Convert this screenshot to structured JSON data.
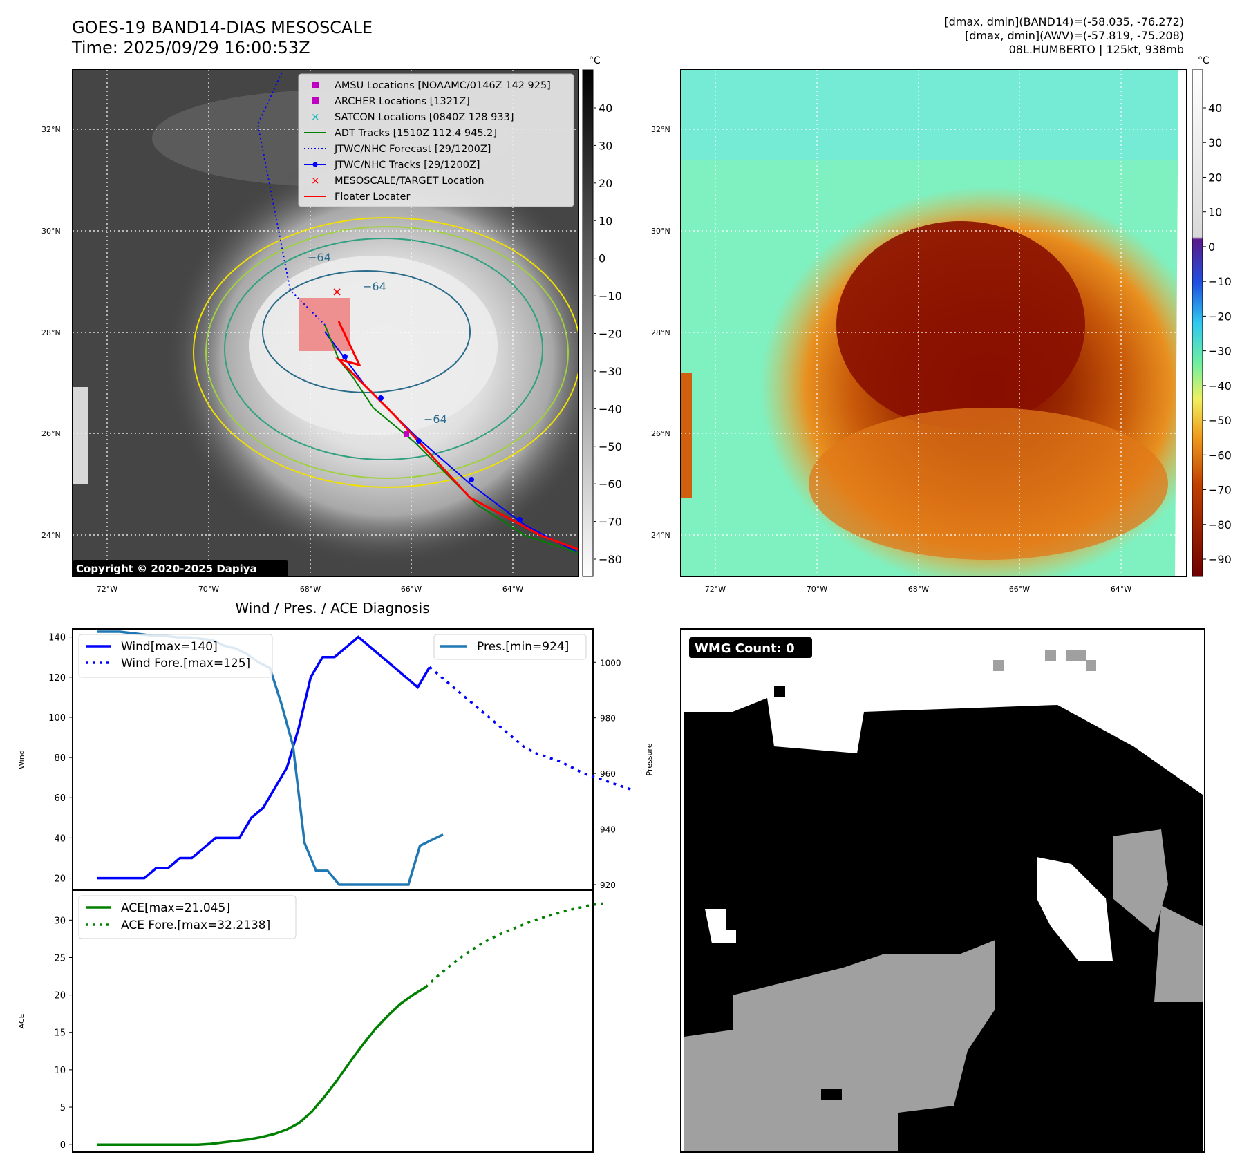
{
  "header": {
    "title": "GOES-19 BAND14-DIAS MESOSCALE",
    "time": "Time: 2025/09/29 16:00:53Z",
    "meta_line1": "[dmax, dmin](BAND14)=(-58.035, -76.272)",
    "meta_line2": "[dmax, dmin](AWV)=(-57.819, -75.208)",
    "meta_line3": "08L.HUMBERTO | 125kt, 938mb"
  },
  "map": {
    "lat_labels": [
      "32°N",
      "30°N",
      "28°N",
      "26°N",
      "24°N"
    ],
    "lon_labels": [
      "72°W",
      "70°W",
      "68°W",
      "66°W",
      "64°W"
    ],
    "contour_label": "−64",
    "copyright": "Copyright © 2020-2025 Dapiya",
    "legend": [
      {
        "label": "AMSU Locations [NOAAMC/0146Z 142 925]",
        "color": "#c000c0",
        "marker": "square"
      },
      {
        "label": "ARCHER Locations [1321Z]",
        "color": "#c000c0",
        "marker": "square"
      },
      {
        "label": "SATCON Locations [0840Z 128 933]",
        "color": "#10b8b8",
        "marker": "x"
      },
      {
        "label": "ADT Tracks [1510Z 112.4 945.2]",
        "color": "#008000",
        "marker": "line"
      },
      {
        "label": "JTWC/NHC Forecast [29/1200Z]",
        "color": "#0000ff",
        "marker": "dotted"
      },
      {
        "label": "JTWC/NHC Tracks [29/1200Z]",
        "color": "#0000ff",
        "marker": "line-dot"
      },
      {
        "label": "MESOSCALE/TARGET Location",
        "color": "#ff0000",
        "marker": "x"
      },
      {
        "label": "Floater Locater",
        "color": "#ff0000",
        "marker": "line"
      }
    ]
  },
  "colorbar_gray": {
    "unit": "°C",
    "ticks": [
      "40",
      "30",
      "20",
      "10",
      "0",
      "−10",
      "−20",
      "−30",
      "−40",
      "−50",
      "−60",
      "−70",
      "−80"
    ]
  },
  "colorbar_color": {
    "unit": "°C",
    "ticks": [
      "40",
      "30",
      "20",
      "10",
      "0",
      "−10",
      "−20",
      "−30",
      "−40",
      "−50",
      "−60",
      "−70",
      "−80",
      "−90"
    ]
  },
  "wmg": {
    "badge": "WMG Count: 0"
  },
  "chart_data": [
    {
      "type": "line",
      "title": "Wind / Pres. / ACE Diagnosis",
      "ylabel": "Wind",
      "ylabel_right": "Pressure",
      "ylim": [
        14,
        144
      ],
      "ylim_right": [
        918,
        1012
      ],
      "yticks": [
        20,
        40,
        60,
        80,
        100,
        120,
        140
      ],
      "yticks_right": [
        920,
        940,
        960,
        980,
        1000
      ],
      "legend_left": [
        "Wind[max=140]",
        "Wind Fore.[max=125]"
      ],
      "legend_right": "Pres.[min=924]",
      "series": [
        {
          "name": "Wind[max=140]",
          "color": "#0000ff",
          "style": "solid",
          "values": [
            20,
            20,
            20,
            20,
            20,
            25,
            25,
            30,
            30,
            35,
            40,
            40,
            40,
            50,
            55,
            65,
            75,
            95,
            120,
            130,
            130,
            135,
            140,
            135,
            130,
            125,
            120,
            115,
            125
          ]
        },
        {
          "name": "Wind Fore.[max=125]",
          "color": "#0000ff",
          "style": "dotted",
          "offset": 28,
          "values": [
            125,
            120,
            115,
            110,
            105,
            100,
            95,
            90,
            85,
            82,
            80,
            78,
            75,
            72,
            70,
            68,
            66,
            64
          ]
        },
        {
          "name": "Pres.[min=924]",
          "color": "#1f77b4",
          "style": "solid",
          "axis": "right",
          "values": [
            1011,
            1011,
            1011,
            1010.5,
            1010,
            1009.5,
            1009.5,
            1009,
            1009,
            1008.5,
            1008,
            1006,
            1005,
            1003,
            1000,
            998,
            985,
            970,
            935,
            925,
            925,
            920,
            920,
            920,
            920,
            920,
            920,
            920,
            934,
            936,
            938
          ]
        }
      ]
    },
    {
      "type": "line",
      "ylabel": "ACE",
      "ylim": [
        -1,
        34
      ],
      "yticks": [
        0,
        5,
        10,
        15,
        20,
        25,
        30
      ],
      "series": [
        {
          "name": "ACE[max=21.045]",
          "color": "#008000",
          "style": "solid",
          "values": [
            0,
            0,
            0,
            0,
            0,
            0,
            0,
            0,
            0,
            0.1,
            0.3,
            0.5,
            0.7,
            1.0,
            1.4,
            2.0,
            2.9,
            4.4,
            6.4,
            8.6,
            11.0,
            13.3,
            15.4,
            17.2,
            18.8,
            20.0,
            21.045
          ]
        },
        {
          "name": "ACE Fore.[max=32.2138]",
          "color": "#008000",
          "style": "dotted",
          "offset": 26,
          "values": [
            21.045,
            22.6,
            24.0,
            25.3,
            26.4,
            27.4,
            28.2,
            28.9,
            29.6,
            30.2,
            30.7,
            31.2,
            31.6,
            32.0,
            32.2138
          ]
        }
      ]
    }
  ]
}
